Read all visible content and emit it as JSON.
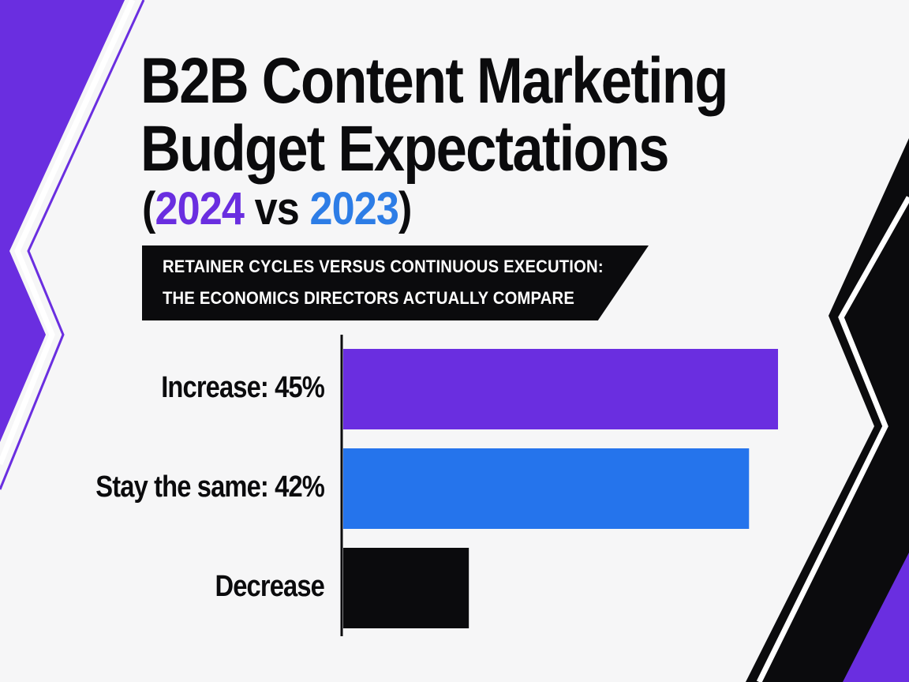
{
  "title": {
    "line1": "B2B Content Marketing",
    "line2": "Budget Expectations",
    "line3_open": "(",
    "line3_year1": "2024",
    "line3_vs": " vs ",
    "line3_year2": "2023",
    "line3_close": ")"
  },
  "banner": {
    "line1": "RETAINER CYCLES VERSUS CONTINUOUS EXECUTION:",
    "line2": "THE ECONOMICS DIRECTORS ACTUALLY COMPARE"
  },
  "colors": {
    "purple": "#6a2ee0",
    "blue": "#2574ec",
    "black": "#0b0b0d",
    "background": "#f6f6f7"
  },
  "chart_data": {
    "type": "bar",
    "orientation": "horizontal",
    "categories": [
      "Increase",
      "Stay the same",
      "Decrease"
    ],
    "category_labels": [
      "Increase: 45%",
      "Stay the same: 42%",
      "Decrease"
    ],
    "values": [
      45,
      42,
      13
    ],
    "bar_colors": [
      "#6a2ee0",
      "#2574ec",
      "#0b0b0d"
    ],
    "xlim": [
      0,
      45
    ],
    "title": "B2B Content Marketing Budget Expectations (2024 vs 2023)",
    "xlabel": "",
    "ylabel": "",
    "grid": false,
    "legend": "none"
  }
}
